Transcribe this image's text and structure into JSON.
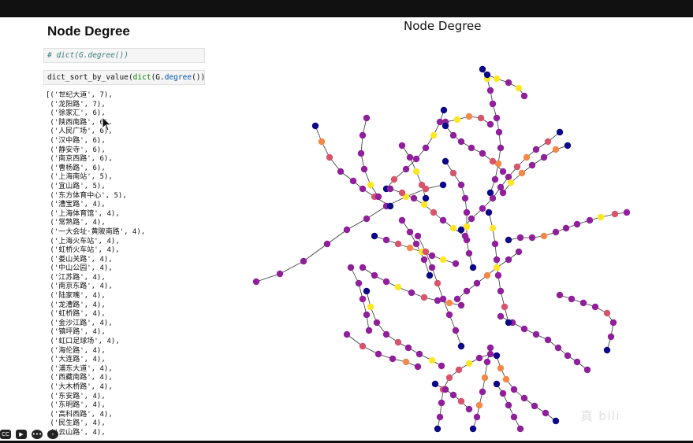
{
  "heading": "Node Degree",
  "cells": {
    "comment": "# dict(G.degree())",
    "code_fn": "dict_sort_by_value(",
    "code_builtin": "dict",
    "code_arg": "(G.",
    "code_attr": "degree",
    "code_end": "()))"
  },
  "output_lines": [
    "[('世纪大道', 7),",
    " ('龙阳路', 7),",
    " ('徐家汇', 6),",
    " ('陕西南路', 6),",
    " ('人民广场', 6),",
    " ('汉中路', 6),",
    " ('静安寺', 6),",
    " ('南京西路', 6),",
    " ('曹杨路', 6),",
    " ('上海南站', 5),",
    " ('宜山路', 5),",
    " ('东方体育中心', 5),",
    " ('漕宝路', 4),",
    " ('上海体育馆', 4),",
    " ('常熟路', 4),",
    " ('一大会址·黄陂南路', 4),",
    " ('上海火车站', 4),",
    " ('虹桥火车站', 4),",
    " ('娄山关路', 4),",
    " ('中山公园', 4),",
    " ('江苏路', 4),",
    " ('南京东路', 4),",
    " ('陆家嘴', 4),",
    " ('龙漕路', 4),",
    " ('虹桥路', 4),",
    " ('金沙江路', 4),",
    " ('镇坪路', 4),",
    " ('虹口足球场', 4),",
    " ('海伦路', 4),",
    " ('大连路', 4),",
    " ('浦东大道', 4),",
    " ('西藏南路', 4),",
    " ('大木桥路', 4),",
    " ('东安路', 4),",
    " ('东明路', 4),",
    " ('高科西路', 4),",
    " ('民生路', 4),",
    " ('云山路', 4),"
  ],
  "plot": {
    "title": "Node Degree",
    "node_colors": {
      "degree_1": "#0d0887",
      "degree_2": "#8f1f9a",
      "degree_3": "#d6556d",
      "degree_4": "#f48849",
      "degree_5plus": "#fde725"
    }
  },
  "controls": [
    "cc-icon",
    "camera-icon",
    "more-icon",
    "play-icon"
  ],
  "watermark": "真 bili"
}
